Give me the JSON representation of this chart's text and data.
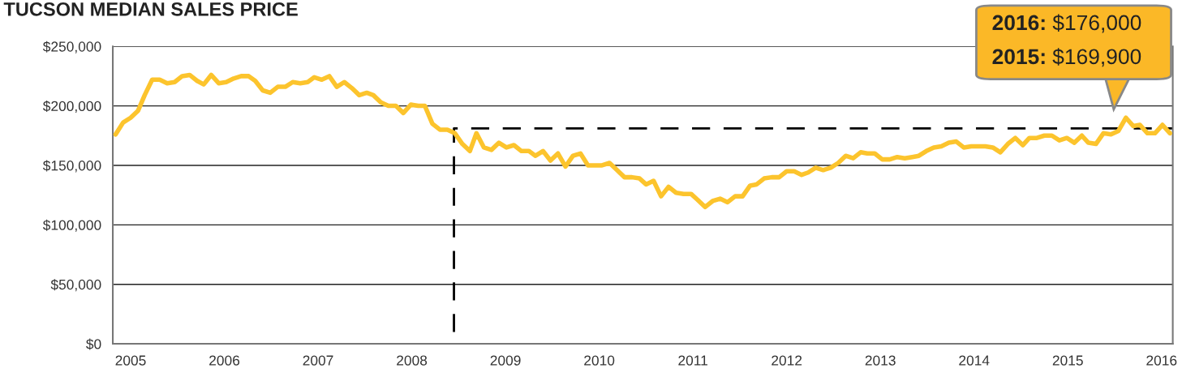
{
  "chart_data": {
    "type": "line",
    "title": "TUCSON MEDIAN SALES PRICE",
    "annotations": [
      "2016: $176,000",
      "2015: $169,900"
    ],
    "xlim": [
      2004.81,
      2016.12
    ],
    "xticks": [
      2005,
      2006,
      2007,
      2008,
      2009,
      2010,
      2011,
      2012,
      2013,
      2014,
      2015,
      2016
    ],
    "ylim": [
      0,
      250000
    ],
    "yticks": [
      {
        "value": 0,
        "label": "$0"
      },
      {
        "value": 50000,
        "label": "$50,000"
      },
      {
        "value": 100000,
        "label": "$100,000"
      },
      {
        "value": 150000,
        "label": "$150,000"
      },
      {
        "value": 200000,
        "label": "$200,000"
      },
      {
        "value": 250000,
        "label": "$250,000"
      }
    ],
    "grid": "y",
    "series": [
      {
        "color": "#fcc42d",
        "line_style": "solid",
        "x": [
          2004.84,
          2004.92,
          2005.0,
          2005.08,
          2005.15,
          2005.23,
          2005.31,
          2005.39,
          2005.47,
          2005.55,
          2005.63,
          2005.71,
          2005.78,
          2005.86,
          2005.94,
          2006.02,
          2006.1,
          2006.18,
          2006.26,
          2006.33,
          2006.41,
          2006.49,
          2006.57,
          2006.65,
          2006.73,
          2006.81,
          2006.89,
          2006.96,
          2007.04,
          2007.12,
          2007.2,
          2007.28,
          2007.36,
          2007.44,
          2007.52,
          2007.59,
          2007.67,
          2007.75,
          2007.83,
          2007.91,
          2007.99,
          2008.07,
          2008.14,
          2008.22,
          2008.3,
          2008.38,
          2008.46,
          2008.54,
          2008.62,
          2008.69,
          2008.77,
          2008.85,
          2008.93,
          2009.01,
          2009.09,
          2009.17,
          2009.25,
          2009.32,
          2009.4,
          2009.48,
          2009.56,
          2009.64,
          2009.72,
          2009.8,
          2009.88,
          2009.95,
          2010.03,
          2010.11,
          2010.19,
          2010.27,
          2010.35,
          2010.43,
          2010.5,
          2010.58,
          2010.66,
          2010.74,
          2010.82,
          2010.9,
          2010.98,
          2011.05,
          2011.13,
          2011.21,
          2011.29,
          2011.37,
          2011.45,
          2011.53,
          2011.61,
          2011.68,
          2011.76,
          2011.84,
          2011.92,
          2012.0,
          2012.08,
          2012.16,
          2012.23,
          2012.31,
          2012.39,
          2012.47,
          2012.55,
          2012.63,
          2012.71,
          2012.79,
          2012.86,
          2012.94,
          2013.02,
          2013.1,
          2013.18,
          2013.26,
          2013.34,
          2013.41,
          2013.49,
          2013.57,
          2013.65,
          2013.73,
          2013.81,
          2013.89,
          2013.97,
          2014.04,
          2014.12,
          2014.2,
          2014.28,
          2014.36,
          2014.44,
          2014.52,
          2014.59,
          2014.67,
          2014.75,
          2014.83,
          2014.91,
          2014.99,
          2015.07,
          2015.15,
          2015.22,
          2015.3,
          2015.38,
          2015.46,
          2015.54,
          2015.62,
          2015.7,
          2015.77,
          2015.85,
          2015.93,
          2016.01,
          2016.09
        ],
        "values": [
          176000,
          186000,
          190000,
          196000,
          209000,
          222000,
          222000,
          219000,
          220000,
          225000,
          226000,
          221000,
          218000,
          226000,
          219000,
          220000,
          223000,
          225000,
          225000,
          221000,
          213000,
          211000,
          216000,
          216000,
          220000,
          219000,
          220000,
          224000,
          222000,
          225000,
          216000,
          220000,
          215000,
          209000,
          211000,
          209000,
          203000,
          200000,
          200000,
          194000,
          201000,
          200000,
          200000,
          185000,
          180000,
          180000,
          177000,
          168000,
          162000,
          177000,
          165000,
          163000,
          169000,
          165000,
          167000,
          162000,
          162000,
          158000,
          162000,
          154000,
          160000,
          149000,
          158000,
          160000,
          150000,
          150000,
          150000,
          152000,
          146000,
          140000,
          140000,
          139000,
          134000,
          137000,
          124000,
          132000,
          127000,
          126000,
          126000,
          121000,
          115000,
          120000,
          122000,
          119000,
          124000,
          124000,
          133000,
          134000,
          139000,
          140000,
          140000,
          145000,
          145000,
          142000,
          144000,
          148000,
          146000,
          148000,
          152000,
          158000,
          156000,
          161000,
          160000,
          160000,
          155000,
          155000,
          157000,
          156000,
          157000,
          158000,
          162000,
          165000,
          166000,
          169000,
          170000,
          165000,
          166000,
          166000,
          166000,
          165000,
          161000,
          168000,
          173000,
          167000,
          173000,
          173000,
          175000,
          175000,
          171000,
          173000,
          169000,
          175000,
          169000,
          168000,
          177000,
          176000,
          179000,
          190000,
          183000,
          184000,
          177000,
          177000,
          184000,
          177000
        ]
      },
      {
        "type": "line",
        "color": "#000000",
        "line_style": "dashed",
        "x": [
          2008.45,
          2008.45,
          2016.12
        ],
        "values": [
          10000,
          181000,
          181000
        ]
      }
    ]
  }
}
